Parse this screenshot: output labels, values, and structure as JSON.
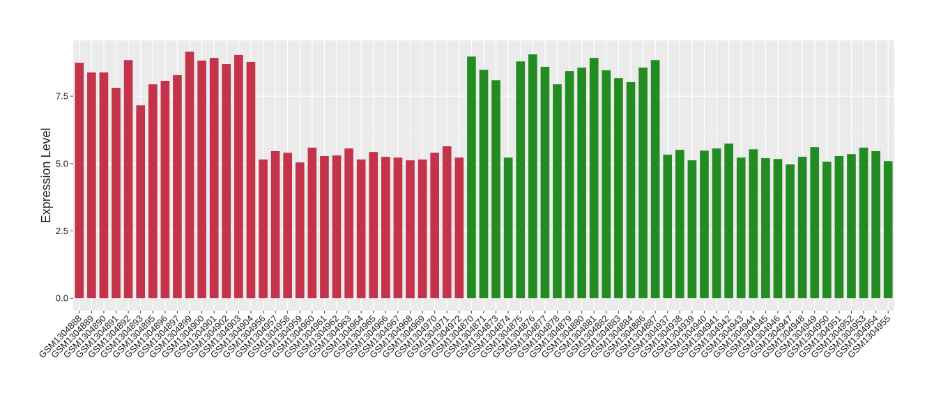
{
  "chart_data": {
    "type": "bar",
    "ylabel": "Expression Level",
    "categories": [
      "GSM1304888",
      "GSM1304889",
      "GSM1304890",
      "GSM1304891",
      "GSM1304892",
      "GSM1304893",
      "GSM1304895",
      "GSM1304896",
      "GSM1304897",
      "GSM1304899",
      "GSM1304900",
      "GSM1304901",
      "GSM1304902",
      "GSM1304903",
      "GSM1304904",
      "GSM1304956",
      "GSM1304957",
      "GSM1304958",
      "GSM1304959",
      "GSM1304960",
      "GSM1304961",
      "GSM1304962",
      "GSM1304963",
      "GSM1304964",
      "GSM1304965",
      "GSM1304966",
      "GSM1304967",
      "GSM1304968",
      "GSM1304969",
      "GSM1304970",
      "GSM1304971",
      "GSM1304972",
      "GSM1304870",
      "GSM1304871",
      "GSM1304873",
      "GSM1304874",
      "GSM1304875",
      "GSM1304876",
      "GSM1304877",
      "GSM1304878",
      "GSM1304879",
      "GSM1304880",
      "GSM1304881",
      "GSM1304882",
      "GSM1304883",
      "GSM1304884",
      "GSM1304886",
      "GSM1304887",
      "GSM1304937",
      "GSM1304938",
      "GSM1304939",
      "GSM1304940",
      "GSM1304941",
      "GSM1304942",
      "GSM1304943",
      "GSM1304944",
      "GSM1304945",
      "GSM1304946",
      "GSM1304947",
      "GSM1304948",
      "GSM1304949",
      "GSM1304950",
      "GSM1304951",
      "GSM1304952",
      "GSM1304953",
      "GSM1304954",
      "GSM1304955"
    ],
    "values": [
      8.74,
      8.38,
      8.38,
      7.81,
      8.84,
      7.16,
      7.94,
      8.07,
      8.28,
      9.15,
      8.82,
      8.92,
      8.69,
      9.03,
      8.77,
      5.15,
      5.46,
      5.4,
      5.04,
      5.59,
      5.28,
      5.3,
      5.56,
      5.15,
      5.43,
      5.25,
      5.22,
      5.12,
      5.15,
      5.4,
      5.64,
      5.22,
      8.97,
      8.48,
      8.09,
      5.22,
      8.79,
      9.05,
      8.59,
      7.94,
      8.43,
      8.56,
      8.92,
      8.46,
      8.17,
      8.02,
      8.56,
      8.84,
      5.33,
      5.51,
      5.12,
      5.48,
      5.56,
      5.74,
      5.22,
      5.53,
      5.2,
      5.17,
      4.97,
      5.25,
      5.61,
      5.07,
      5.28,
      5.35,
      5.59,
      5.46,
      5.09
    ],
    "colors": [
      "#c3334a",
      "#c3334a",
      "#c3334a",
      "#c3334a",
      "#c3334a",
      "#c3334a",
      "#c3334a",
      "#c3334a",
      "#c3334a",
      "#c3334a",
      "#c3334a",
      "#c3334a",
      "#c3334a",
      "#c3334a",
      "#c3334a",
      "#c3334a",
      "#c3334a",
      "#c3334a",
      "#c3334a",
      "#c3334a",
      "#c3334a",
      "#c3334a",
      "#c3334a",
      "#c3334a",
      "#c3334a",
      "#c3334a",
      "#c3334a",
      "#c3334a",
      "#c3334a",
      "#c3334a",
      "#c3334a",
      "#c3334a",
      "#228b22",
      "#228b22",
      "#228b22",
      "#228b22",
      "#228b22",
      "#228b22",
      "#228b22",
      "#228b22",
      "#228b22",
      "#228b22",
      "#228b22",
      "#228b22",
      "#228b22",
      "#228b22",
      "#228b22",
      "#228b22",
      "#228b22",
      "#228b22",
      "#228b22",
      "#228b22",
      "#228b22",
      "#228b22",
      "#228b22",
      "#228b22",
      "#228b22",
      "#228b22",
      "#228b22",
      "#228b22",
      "#228b22",
      "#228b22",
      "#228b22",
      "#228b22",
      "#228b22",
      "#228b22",
      "#228b22"
    ],
    "ylim": [
      -0.46,
      9.57
    ],
    "yticks": [
      {
        "value": 0,
        "label": "0.0"
      },
      2.5,
      {
        "value": 5,
        "label": "5.0"
      },
      7.5
    ],
    "grid": true
  }
}
